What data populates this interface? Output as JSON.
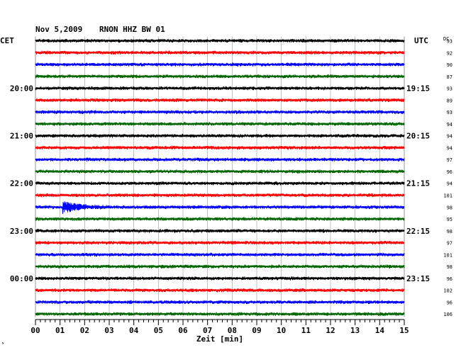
{
  "title": {
    "date": "Nov 5,2009",
    "station": "RNON HHZ BW 01"
  },
  "left_timezone": "CET",
  "right_timezone": "UTC",
  "dc_label": "DC",
  "xlabel": "Zeit [min]",
  "corner_mark": "ᴺ",
  "colors": {
    "black": "#000000",
    "red": "#ff0000",
    "blue": "#0000ff",
    "green": "#006600"
  },
  "chart_data": {
    "type": "line",
    "title": "Nov 5,2009   RNON HHZ BW 01",
    "xlabel": "Zeit [min]",
    "xlim": [
      0,
      15
    ],
    "x_ticks": [
      "00",
      "01",
      "02",
      "03",
      "04",
      "05",
      "06",
      "07",
      "08",
      "09",
      "10",
      "11",
      "12",
      "13",
      "14",
      "15"
    ],
    "traces_per_hour": 4,
    "trace_color_cycle": [
      "black",
      "red",
      "blue",
      "green"
    ],
    "left_hour_labels": [
      {
        "trace": 4,
        "label": "20:00"
      },
      {
        "trace": 8,
        "label": "21:00"
      },
      {
        "trace": 12,
        "label": "22:00"
      },
      {
        "trace": 16,
        "label": "23:00"
      },
      {
        "trace": 20,
        "label": "00:00"
      }
    ],
    "right_hour_labels": [
      {
        "trace": 4,
        "label": "19:15"
      },
      {
        "trace": 8,
        "label": "20:15"
      },
      {
        "trace": 12,
        "label": "21:15"
      },
      {
        "trace": 16,
        "label": "22:15"
      },
      {
        "trace": 20,
        "label": "23:15"
      }
    ],
    "dc_values": [
      93,
      92,
      90,
      87,
      93,
      89,
      93,
      94,
      94,
      94,
      97,
      96,
      94,
      101,
      98,
      95,
      98,
      97,
      101,
      98,
      96,
      102,
      96,
      106
    ],
    "events": [
      {
        "trace": 14,
        "start_min": 1.1,
        "end_min": 3.1
      }
    ]
  }
}
